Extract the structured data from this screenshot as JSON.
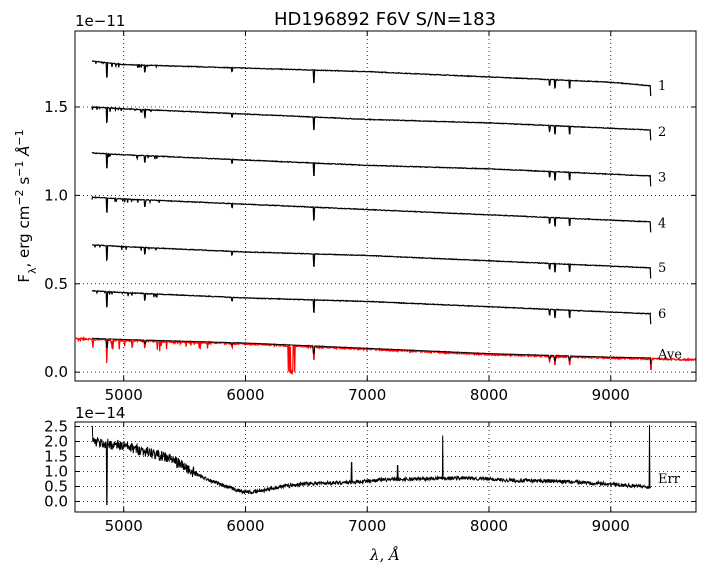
{
  "chart_data": [
    {
      "type": "line",
      "title": "HD196892  F6V  S/N=183",
      "ylabel_html": "F<tspan baseline-shift=\"sub\" font-size=\"11\">λ</tspan>, erg cm<tspan baseline-shift=\"super\" font-size=\"11\">−2</tspan> s<tspan baseline-shift=\"super\" font-size=\"11\">−1</tspan> <tspan font-style=\"italic\">Å</tspan><tspan baseline-shift=\"super\" font-size=\"11\">−1</tspan>",
      "offset_label": "1e−11",
      "xlim": [
        4600,
        9700
      ],
      "ylim": [
        -0.05,
        1.93
      ],
      "xticks": [
        5000,
        6000,
        7000,
        8000,
        9000
      ],
      "xtick_labels": [
        "5000",
        "6000",
        "7000",
        "8000",
        "9000"
      ],
      "yticks": [
        0.0,
        0.5,
        1.0,
        1.5
      ],
      "ytick_labels": [
        "0.0",
        "0.5",
        "1.0",
        "1.5"
      ],
      "grid": true,
      "series": [
        {
          "name": "1",
          "color": "#000000",
          "x": [
            4740,
            5000,
            6000,
            7000,
            8000,
            9000,
            9330
          ],
          "values": [
            1.76,
            1.74,
            1.72,
            1.7,
            1.67,
            1.64,
            1.62
          ]
        },
        {
          "name": "2",
          "color": "#000000",
          "x": [
            4740,
            5000,
            6000,
            7000,
            8000,
            9000,
            9330
          ],
          "values": [
            1.5,
            1.49,
            1.46,
            1.43,
            1.41,
            1.38,
            1.37
          ]
        },
        {
          "name": "3",
          "color": "#000000",
          "x": [
            4740,
            5000,
            6000,
            7000,
            8000,
            9000,
            9330
          ],
          "values": [
            1.24,
            1.23,
            1.2,
            1.17,
            1.15,
            1.12,
            1.11
          ]
        },
        {
          "name": "4",
          "color": "#000000",
          "x": [
            4740,
            5000,
            6000,
            7000,
            8000,
            9000,
            9330
          ],
          "values": [
            0.99,
            0.98,
            0.95,
            0.92,
            0.89,
            0.86,
            0.85
          ]
        },
        {
          "name": "5",
          "color": "#000000",
          "x": [
            4740,
            5000,
            6000,
            7000,
            8000,
            9000,
            9330
          ],
          "values": [
            0.72,
            0.71,
            0.68,
            0.66,
            0.63,
            0.6,
            0.59
          ]
        },
        {
          "name": "6",
          "color": "#000000",
          "x": [
            4740,
            5000,
            6000,
            7000,
            8000,
            9000,
            9330
          ],
          "values": [
            0.46,
            0.45,
            0.42,
            0.4,
            0.37,
            0.34,
            0.33
          ]
        },
        {
          "name": "Ave",
          "color": "#ff0000",
          "x": [
            4600,
            5000,
            6000,
            7000,
            8000,
            9000,
            9700
          ],
          "values": [
            0.19,
            0.18,
            0.16,
            0.13,
            0.1,
            0.08,
            0.07
          ]
        }
      ],
      "series_label_y": [
        1.62,
        1.36,
        1.1,
        0.84,
        0.59,
        0.33,
        0.1
      ],
      "absorption_lines": [
        {
          "x": 4861,
          "depth": 0.08
        },
        {
          "x": 5175,
          "depth": 0.035
        },
        {
          "x": 5890,
          "depth": 0.02
        },
        {
          "x": 6563,
          "depth": 0.07
        },
        {
          "x": 8498,
          "depth": 0.03
        },
        {
          "x": 8542,
          "depth": 0.045
        },
        {
          "x": 8662,
          "depth": 0.04
        },
        {
          "x": 9330,
          "depth": 0.06
        }
      ]
    },
    {
      "type": "line",
      "title": "",
      "xlabel_html": "<tspan font-style=\"italic\">λ</tspan>, <tspan font-style=\"italic\">Å</tspan>",
      "offset_label": "1e−14",
      "xlim": [
        4600,
        9700
      ],
      "ylim": [
        -0.35,
        2.65
      ],
      "xticks": [
        5000,
        6000,
        7000,
        8000,
        9000
      ],
      "xtick_labels": [
        "5000",
        "6000",
        "7000",
        "8000",
        "9000"
      ],
      "yticks": [
        0.0,
        0.5,
        1.0,
        1.5,
        2.0,
        2.5
      ],
      "ytick_labels": [
        "0.0",
        "0.5",
        "1.0",
        "1.5",
        "2.0",
        "2.5"
      ],
      "grid": true,
      "series": [
        {
          "name": "Err",
          "color": "#000000",
          "x": [
            4740,
            4800,
            5000,
            5200,
            5400,
            5600,
            5800,
            5950,
            6050,
            6300,
            6500,
            6700,
            6900,
            7100,
            7400,
            7600,
            7800,
            8000,
            8200,
            8500,
            8800,
            9000,
            9200,
            9300,
            9330
          ],
          "values": [
            2.0,
            1.95,
            1.85,
            1.65,
            1.4,
            0.9,
            0.55,
            0.35,
            0.3,
            0.5,
            0.6,
            0.62,
            0.65,
            0.72,
            0.75,
            0.78,
            0.78,
            0.75,
            0.7,
            0.68,
            0.63,
            0.58,
            0.52,
            0.48,
            0.45
          ]
        }
      ],
      "spikes": [
        {
          "x": 4741,
          "value": 2.5
        },
        {
          "x": 4862,
          "value": -0.1
        },
        {
          "x": 6872,
          "value": 1.3
        },
        {
          "x": 7250,
          "value": 1.2
        },
        {
          "x": 7620,
          "value": 2.2
        },
        {
          "x": 9318,
          "value": 2.55
        },
        {
          "x": 9335,
          "value": 2.55
        }
      ]
    }
  ]
}
